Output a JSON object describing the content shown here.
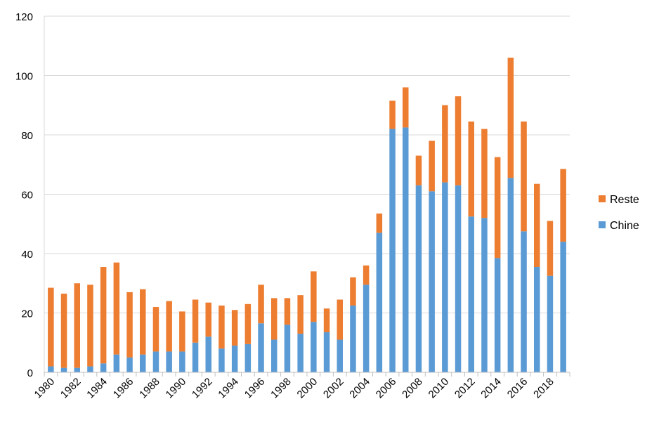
{
  "chart_data": {
    "type": "bar",
    "stacked": true,
    "x": [
      1980,
      1981,
      1982,
      1983,
      1984,
      1985,
      1986,
      1987,
      1988,
      1989,
      1990,
      1991,
      1992,
      1993,
      1994,
      1995,
      1996,
      1997,
      1998,
      1999,
      2000,
      2001,
      2002,
      2003,
      2004,
      2005,
      2006,
      2007,
      2008,
      2009,
      2010,
      2011,
      2012,
      2013,
      2014,
      2015,
      2016,
      2017,
      2018,
      2019
    ],
    "x_tick_labels": [
      "1980",
      "1982",
      "1984",
      "1986",
      "1988",
      "1990",
      "1992",
      "1994",
      "1996",
      "1998",
      "2000",
      "2002",
      "2004",
      "2006",
      "2008",
      "2010",
      "2012",
      "2014",
      "2016",
      "2018"
    ],
    "series": [
      {
        "name": "Chine",
        "color": "#5B9BD5",
        "values": [
          2,
          1.5,
          1.5,
          2,
          3,
          6,
          5,
          6,
          7,
          7,
          7,
          10,
          12,
          8,
          9,
          9.5,
          16.5,
          11,
          16,
          13,
          17,
          13.5,
          11,
          22.5,
          29.5,
          47,
          82,
          82.5,
          63,
          61,
          64,
          63,
          52.5,
          52,
          38.5,
          65.5,
          47.5,
          35.5,
          32.5,
          44
        ]
      },
      {
        "name": "Reste",
        "color": "#ED7D31",
        "values": [
          26.5,
          25,
          28.5,
          27.5,
          32.5,
          31,
          22,
          22,
          15,
          17,
          13.5,
          14.5,
          11.5,
          14.5,
          12,
          13.5,
          13,
          14,
          9,
          13,
          17,
          8,
          13.5,
          9.5,
          6.5,
          6.5,
          9.5,
          13.5,
          10,
          17,
          26,
          30,
          32,
          30,
          34,
          40.5,
          37,
          28,
          18.5,
          24.5
        ]
      }
    ],
    "ylim": [
      0,
      120
    ],
    "y_ticks": [
      0,
      20,
      40,
      60,
      80,
      100,
      120
    ],
    "grid": true,
    "legend_position": "right",
    "title": "",
    "xlabel": "",
    "ylabel": ""
  }
}
